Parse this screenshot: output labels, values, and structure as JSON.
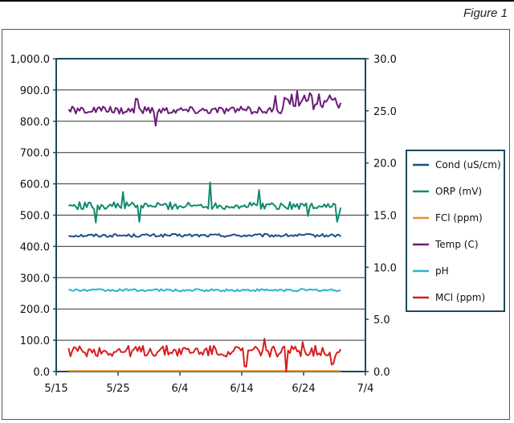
{
  "figure_label": "Figure 1",
  "colors": {
    "axis": "#1b4a5a",
    "grid": "#333333",
    "legend_border": "#1b4a5a",
    "cond": "#1f4e8c",
    "orp": "#0f8a6e",
    "fcl": "#e8922a",
    "temp": "#6a1b7a",
    "ph": "#28b4d4",
    "mcl": "#d81e1e"
  },
  "chart_data": {
    "type": "line",
    "title": "",
    "x_ticks": [
      "5/15",
      "5/25",
      "6/4",
      "6/14",
      "6/24",
      "7/4"
    ],
    "x_range": [
      "5/15",
      "7/4"
    ],
    "y_left": {
      "range": [
        0,
        1000
      ],
      "ticks": [
        "0.0",
        "100.0",
        "200.0",
        "300.0",
        "400.0",
        "500.0",
        "600.0",
        "700.0",
        "800.0",
        "900.0",
        "1,000.0"
      ],
      "grid": true
    },
    "y_right": {
      "range": [
        0,
        30
      ],
      "ticks": [
        "0.0",
        "5.0",
        "10.0",
        "15.0",
        "20.0",
        "25.0",
        "30.0"
      ]
    },
    "legend_position": "right",
    "x_start": "5/17",
    "x_end": "6/30",
    "series": [
      {
        "name": "Cond (uS/cm)",
        "color_key": "cond",
        "axis": "left",
        "base": 435,
        "noise": 5,
        "spikes": []
      },
      {
        "name": "ORP (mV)",
        "color_key": "orp",
        "axis": "left",
        "base": 530,
        "noise": 12,
        "spikes": [
          [
            0.1,
            -50
          ],
          [
            0.2,
            40
          ],
          [
            0.26,
            -55
          ],
          [
            0.52,
            80
          ],
          [
            0.7,
            55
          ],
          [
            0.88,
            -30
          ],
          [
            0.99,
            -40
          ]
        ]
      },
      {
        "name": "FCl (ppm)",
        "color_key": "fcl",
        "axis": "left",
        "base": 2,
        "noise": 0,
        "spikes": []
      },
      {
        "name": "Temp (C)",
        "color_key": "temp",
        "axis": "left",
        "base": 835,
        "noise": 12,
        "spikes": [
          [
            0.25,
            35
          ],
          [
            0.32,
            -55
          ],
          [
            0.76,
            35
          ],
          [
            0.84,
            45
          ],
          [
            0.89,
            40
          ]
        ]
      },
      {
        "name": "pH",
        "color_key": "ph",
        "axis": "left",
        "base": 260,
        "noise": 4,
        "spikes": []
      },
      {
        "name": "MCl (ppm)",
        "color_key": "mcl",
        "axis": "left",
        "base": 65,
        "noise": 18,
        "spikes": [
          [
            0.65,
            -55
          ],
          [
            0.72,
            40
          ],
          [
            0.8,
            -50
          ],
          [
            0.86,
            45
          ],
          [
            0.97,
            -40
          ]
        ]
      }
    ]
  }
}
